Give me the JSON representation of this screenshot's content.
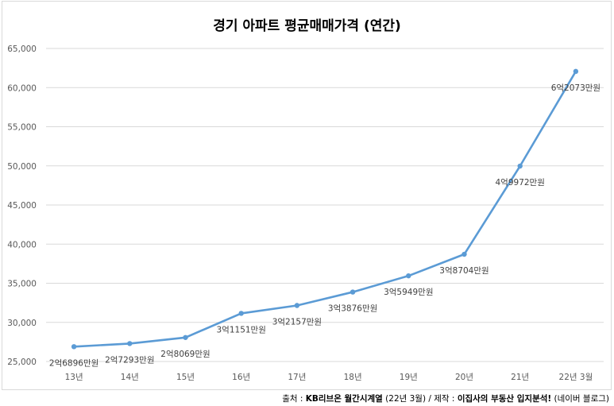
{
  "chart_data": {
    "type": "line",
    "title": "경기 아파트 평균매매가격 (연간)",
    "categories": [
      "13년",
      "14년",
      "15년",
      "16년",
      "17년",
      "18년",
      "19년",
      "20년",
      "21년",
      "22년 3월"
    ],
    "series": [
      {
        "values": [
          26896,
          27293,
          28069,
          31151,
          32157,
          33876,
          35949,
          38704,
          49972,
          62073
        ],
        "labels": [
          "2억6896만원",
          "2억7293만원",
          "2억8069만원",
          "3억1151만원",
          "3억2157만원",
          "3억3876만원",
          "3억5949만원",
          "3억8704만원",
          "4억9972만원",
          "6억2073만원"
        ]
      }
    ],
    "ylim": [
      25000,
      65000
    ],
    "yticks": [
      "25,000",
      "30,000",
      "35,000",
      "40,000",
      "45,000",
      "50,000",
      "55,000",
      "60,000",
      "65,000"
    ],
    "grid": true,
    "legend": "none",
    "line_color": "#5b9bd5",
    "grid_color": "#d9d9d9"
  },
  "footer": {
    "prefix": "출처 : ",
    "source_bold": "KB리브온 월간시계열",
    "source_rest": " (22년 3월) / 제작 : ",
    "author_bold": "이집사의 부동산 입지분석!",
    "author_rest": " (네이버 블로그)"
  }
}
